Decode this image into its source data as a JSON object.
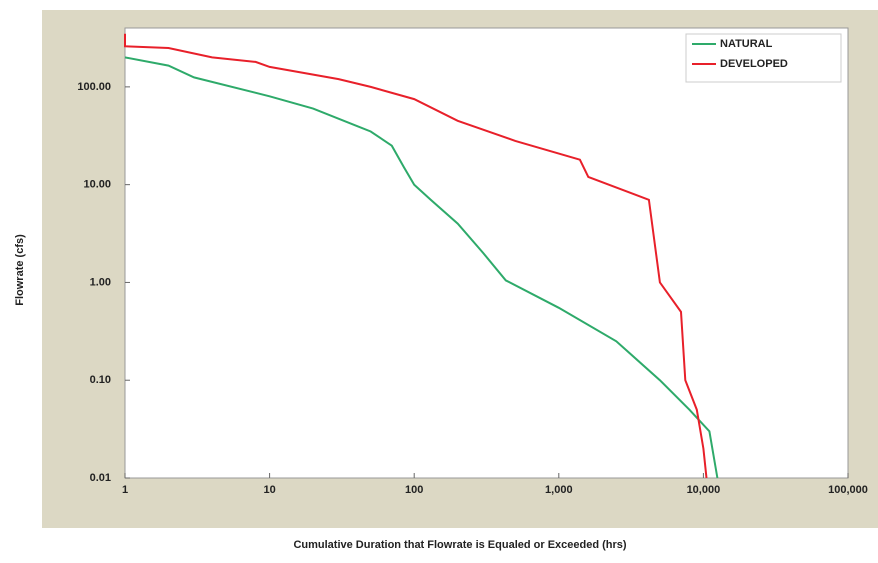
{
  "chart_data": {
    "type": "line",
    "x_label": "Cumulative Duration that Flowrate is Equaled or Exceeded (hrs)",
    "y_label": "Flowrate (cfs)",
    "xlog": true,
    "ylog": true,
    "grid": false,
    "legend": "upper right",
    "xlim": [
      1,
      100000
    ],
    "xticks": [
      1,
      10,
      100,
      {
        "value": 1000,
        "label": "1,000"
      },
      {
        "value": 10000,
        "label": "10,000"
      },
      {
        "value": 100000,
        "label": "100,000"
      }
    ],
    "ylim": [
      0.01,
      400
    ],
    "yticks": [
      {
        "value": 0.01,
        "label": "0.01"
      },
      {
        "value": 0.1,
        "label": "0.10"
      },
      {
        "value": 1,
        "label": "1.00"
      },
      {
        "value": 10,
        "label": "10.00"
      },
      {
        "value": 100,
        "label": "100.00"
      }
    ],
    "series": [
      {
        "name": "NATURAL",
        "color": "#2eaa6a",
        "x": [
          1,
          2,
          3,
          10,
          20,
          50,
          70,
          85,
          100,
          130,
          200,
          300,
          430,
          1000,
          2500,
          5000,
          8000,
          11000,
          12500
        ],
        "values": [
          200,
          165,
          125,
          80,
          60,
          35,
          25,
          15,
          10,
          7,
          4,
          2,
          1.05,
          0.55,
          0.25,
          0.1,
          0.05,
          0.03,
          0.01
        ]
      },
      {
        "name": "DEVELOPED",
        "color": "#e8202a",
        "x": [
          1,
          1,
          2,
          4,
          8,
          10,
          30,
          50,
          100,
          200,
          500,
          1400,
          1600,
          4200,
          5000,
          7000,
          7500,
          9000,
          10000,
          10500
        ],
        "values": [
          350,
          260,
          250,
          200,
          180,
          160,
          120,
          100,
          75,
          45,
          28,
          18,
          12,
          7,
          1,
          0.5,
          0.1,
          0.05,
          0.02,
          0.01
        ]
      }
    ]
  }
}
